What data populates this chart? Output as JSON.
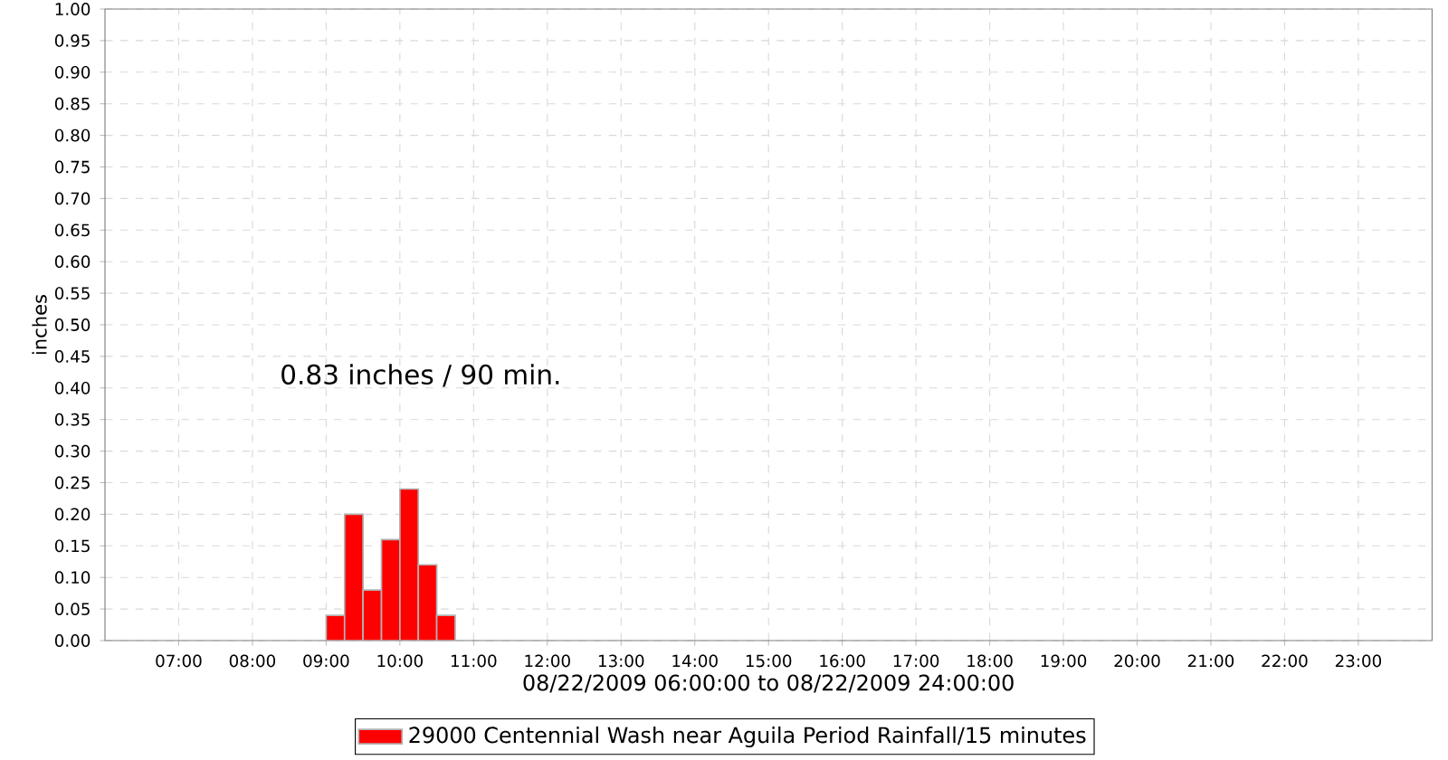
{
  "chart_data": {
    "type": "histogram",
    "xlabel": "08/22/2009 06:00:00 to 08/22/2009 24:00:00",
    "ylabel": "inches",
    "annotations": [
      "0.83 inches / 90 min."
    ],
    "bins": [
      9,
      9.25,
      9.5,
      9.75,
      10,
      10.25,
      10.5,
      10.75
    ],
    "series": [
      {
        "name": "29000 Centennial Wash near Aguila Period Rainfall/15 minutes",
        "color": "#ff0000",
        "values": [
          0.04,
          0.2,
          0.08,
          0.16,
          0.24,
          0.12,
          0.04
        ]
      }
    ],
    "xlim": [
      6,
      24
    ],
    "xticks": [
      {
        "value": 7,
        "label": "07:00"
      },
      {
        "value": 8,
        "label": "08:00"
      },
      {
        "value": 9,
        "label": "09:00"
      },
      {
        "value": 10,
        "label": "10:00"
      },
      {
        "value": 11,
        "label": "11:00"
      },
      {
        "value": 12,
        "label": "12:00"
      },
      {
        "value": 13,
        "label": "13:00"
      },
      {
        "value": 14,
        "label": "14:00"
      },
      {
        "value": 15,
        "label": "15:00"
      },
      {
        "value": 16,
        "label": "16:00"
      },
      {
        "value": 17,
        "label": "17:00"
      },
      {
        "value": 18,
        "label": "18:00"
      },
      {
        "value": 19,
        "label": "19:00"
      },
      {
        "value": 20,
        "label": "20:00"
      },
      {
        "value": 21,
        "label": "21:00"
      },
      {
        "value": 22,
        "label": "22:00"
      },
      {
        "value": 23,
        "label": "23:00"
      }
    ],
    "ylim": [
      0,
      1.0
    ],
    "yticks": [
      {
        "value": 0,
        "label": "0.00"
      },
      {
        "value": 0.05,
        "label": "0.05"
      },
      {
        "value": 0.1,
        "label": "0.10"
      },
      {
        "value": 0.15,
        "label": "0.15"
      },
      {
        "value": 0.2,
        "label": "0.20"
      },
      {
        "value": 0.25,
        "label": "0.25"
      },
      {
        "value": 0.3,
        "label": "0.30"
      },
      {
        "value": 0.35,
        "label": "0.35"
      },
      {
        "value": 0.4,
        "label": "0.40"
      },
      {
        "value": 0.45,
        "label": "0.45"
      },
      {
        "value": 0.5,
        "label": "0.50"
      },
      {
        "value": 0.55,
        "label": "0.55"
      },
      {
        "value": 0.6,
        "label": "0.60"
      },
      {
        "value": 0.65,
        "label": "0.65"
      },
      {
        "value": 0.7,
        "label": "0.70"
      },
      {
        "value": 0.75,
        "label": "0.75"
      },
      {
        "value": 0.8,
        "label": "0.80"
      },
      {
        "value": 0.85,
        "label": "0.85"
      },
      {
        "value": 0.9,
        "label": "0.90"
      },
      {
        "value": 0.95,
        "label": "0.95"
      },
      {
        "value": 1.0,
        "label": "1.00"
      }
    ],
    "grid": true,
    "legend": "bottom"
  }
}
